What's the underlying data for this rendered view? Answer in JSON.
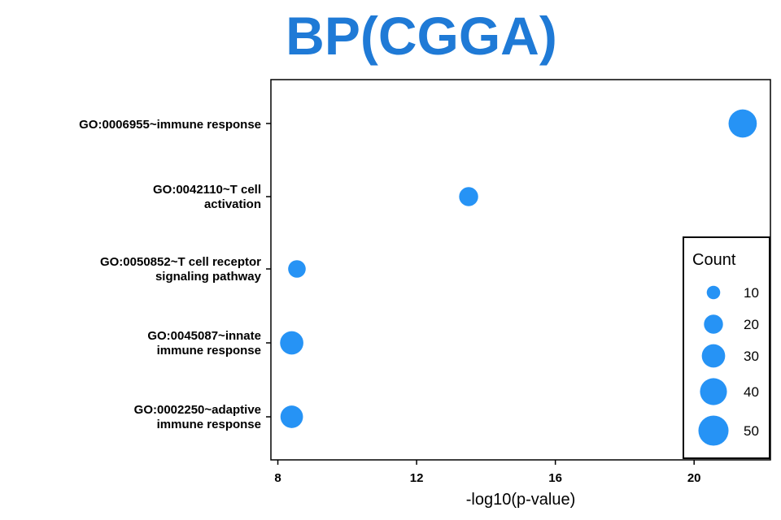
{
  "chart_data": {
    "type": "scatter",
    "title": "BP(CGGA)",
    "xlabel": "-log10(p-value)",
    "ylabel": "",
    "xlim": [
      7.8,
      22.2
    ],
    "x_ticks": [
      8,
      12,
      16,
      20
    ],
    "grid": false,
    "point_color": "#2693f5",
    "title_color": "#1f7ad6",
    "categories": [
      [
        "GO:0006955~immune response"
      ],
      [
        "GO:0042110~T cell",
        "activation"
      ],
      [
        "GO:0050852~T cell receptor",
        "signaling pathway"
      ],
      [
        "GO:0045087~innate",
        "immune response"
      ],
      [
        "GO:0002250~adaptive",
        "immune response"
      ]
    ],
    "points": [
      {
        "x": 21.4,
        "count": 44
      },
      {
        "x": 13.5,
        "count": 20
      },
      {
        "x": 8.55,
        "count": 17
      },
      {
        "x": 8.4,
        "count": 30
      },
      {
        "x": 8.4,
        "count": 28
      }
    ],
    "legend": {
      "title": "Count",
      "position": "right",
      "values": [
        10,
        20,
        30,
        40,
        50
      ]
    }
  }
}
